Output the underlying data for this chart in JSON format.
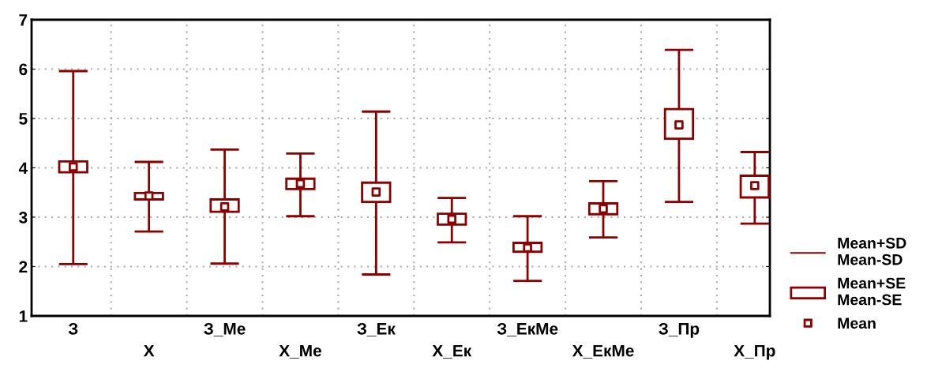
{
  "chart_data": {
    "type": "bar",
    "categories": [
      "З",
      "Х",
      "З_Ме",
      "Х_Ме",
      "З_Ек",
      "Х_Ек",
      "З_ЕкМе",
      "Х_ЕкМе",
      "З_Пр",
      "Х_Пр"
    ],
    "series": [
      {
        "name": "Mean",
        "type": "scatter",
        "marker": "square",
        "color": "#8b0000",
        "values": [
          4.02,
          3.43,
          3.21,
          3.68,
          3.51,
          2.96,
          2.38,
          3.17,
          4.87,
          3.64
        ],
        "errors": [
          [
            2.05,
            5.96
          ],
          [
            2.71,
            4.12
          ],
          [
            2.06,
            4.37
          ],
          [
            3.02,
            4.29
          ],
          [
            1.84,
            5.14
          ],
          [
            2.49,
            3.39
          ],
          [
            1.71,
            3.02
          ],
          [
            2.59,
            3.73
          ],
          [
            3.31,
            6.39
          ],
          [
            2.87,
            4.32
          ]
        ]
      },
      {
        "name": "Mean+SE\nMean-SE",
        "color": "#8b0000",
        "base": [
          3.91,
          3.36,
          3.11,
          3.57,
          3.31,
          2.85,
          2.3,
          3.06,
          4.59,
          3.4
        ],
        "values": [
          0.22,
          0.13,
          0.25,
          0.21,
          0.39,
          0.22,
          0.18,
          0.22,
          0.6,
          0.44
        ]
      }
    ],
    "annotations": [
      "Mean+SD\nMean-SD"
    ],
    "ylim": [
      1,
      7
    ],
    "yticks": [
      1,
      2,
      3,
      4,
      5,
      6,
      7
    ],
    "grid": true,
    "legend": "bottom right"
  }
}
